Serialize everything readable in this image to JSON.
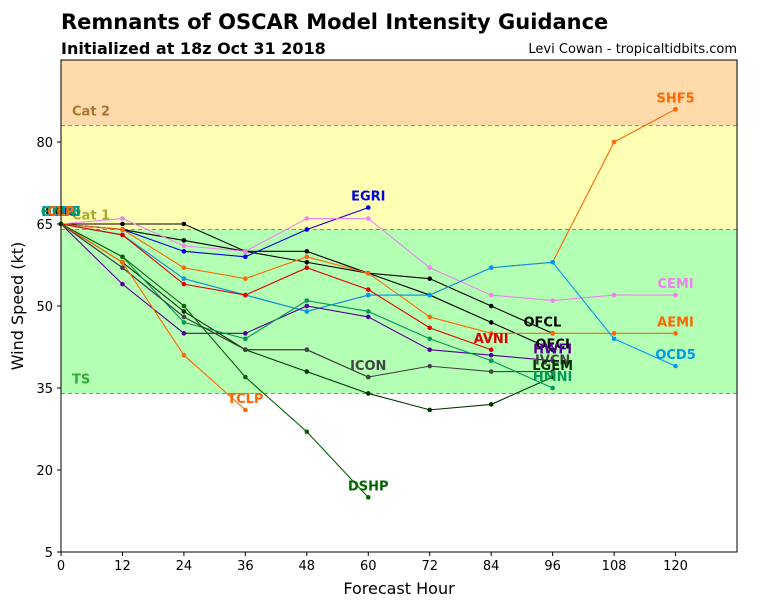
{
  "header": {
    "title": "Remnants of OSCAR Model Intensity Guidance",
    "subtitle": "Initialized at 18z Oct 31 2018",
    "credit": "Levi Cowan - tropicaltidbits.com"
  },
  "chart_data": {
    "type": "line",
    "xlabel": "Forecast Hour",
    "ylabel": "Wind Speed (kt)",
    "xlim": [
      0,
      132
    ],
    "ylim": [
      5,
      95
    ],
    "xticks": [
      0,
      12,
      24,
      36,
      48,
      60,
      72,
      84,
      96,
      108,
      120
    ],
    "yticks": [
      5,
      20,
      35,
      50,
      65,
      80
    ],
    "bands": [
      {
        "name": "TS",
        "from": 34,
        "to": 64,
        "color": "#b3ffb3",
        "label_color": "#33aa33"
      },
      {
        "name": "Cat 1",
        "from": 64,
        "to": 83,
        "color": "#ffffb3",
        "label_color": "#aaaa33"
      },
      {
        "name": "Cat 2",
        "from": 83,
        "to": 96,
        "color": "#ffdaaa",
        "label_color": "#aa7733"
      }
    ],
    "series": [
      {
        "name": "OFCL",
        "color": "#000000",
        "x": [
          0,
          12,
          24,
          36,
          48,
          60,
          72,
          84,
          96
        ],
        "y": [
          65,
          65,
          65,
          60,
          60,
          56,
          52,
          47,
          42
        ],
        "label_at": [
          94,
          47
        ]
      },
      {
        "name": "OFCI",
        "color": "#000000",
        "x": [
          0,
          12,
          24,
          36,
          48,
          60,
          72,
          84,
          96
        ],
        "y": [
          65,
          64,
          62,
          60,
          58,
          56,
          55,
          50,
          45
        ],
        "label_at": [
          96,
          43
        ]
      },
      {
        "name": "EGRI",
        "color": "#0000dd",
        "x": [
          0,
          12,
          24,
          36,
          48,
          60
        ],
        "y": [
          65,
          64,
          60,
          59,
          64,
          68
        ],
        "label_at": [
          60,
          70
        ]
      },
      {
        "name": "SHF5",
        "color": "#ff6600",
        "x": [
          0,
          12,
          24,
          36,
          48,
          60,
          72,
          84,
          96,
          108,
          120
        ],
        "y": [
          65,
          63,
          55,
          52,
          49,
          52,
          52,
          57,
          58,
          80,
          86
        ],
        "label_at": [
          120,
          88
        ]
      },
      {
        "name": "CEMI",
        "color": "#ee82ee",
        "x": [
          0,
          12,
          24,
          36,
          48,
          60,
          72,
          84,
          96,
          108,
          120
        ],
        "y": [
          65,
          66,
          61,
          60,
          66,
          66,
          57,
          52,
          51,
          52,
          52
        ],
        "label_at": [
          120,
          54
        ]
      },
      {
        "name": "AEMI",
        "color": "#ff6600",
        "x": [
          0,
          12,
          24,
          36,
          48,
          60,
          72,
          84,
          96,
          108,
          120
        ],
        "y": [
          65,
          64,
          57,
          55,
          59,
          56,
          48,
          45,
          45,
          45,
          45
        ],
        "label_at": [
          120,
          47
        ]
      },
      {
        "name": "OCD5",
        "color": "#0099ee",
        "x": [
          0,
          12,
          24,
          36,
          48,
          60,
          72,
          84,
          96,
          108,
          120
        ],
        "y": [
          65,
          63,
          55,
          52,
          49,
          52,
          52,
          57,
          58,
          44,
          39
        ],
        "label_at": [
          120,
          41
        ]
      },
      {
        "name": "AVNI",
        "color": "#dd0000",
        "x": [
          0,
          12,
          24,
          36,
          48,
          60,
          72,
          84
        ],
        "y": [
          65,
          63,
          54,
          52,
          57,
          53,
          46,
          42
        ],
        "label_at": [
          84,
          44
        ]
      },
      {
        "name": "HWFI",
        "color": "#550099",
        "x": [
          0,
          12,
          24,
          36,
          48,
          60,
          72,
          84,
          96
        ],
        "y": [
          65,
          54,
          45,
          45,
          50,
          48,
          42,
          41,
          40
        ],
        "label_at": [
          96,
          42
        ]
      },
      {
        "name": "IVCN",
        "color": "#444444",
        "x": [
          0,
          12,
          24,
          36,
          48,
          60,
          72,
          84,
          96
        ],
        "y": [
          65,
          57,
          48,
          42,
          42,
          37,
          39,
          38,
          38
        ],
        "label_at": [
          96,
          40
        ]
      },
      {
        "name": "LGEM",
        "color": "#003300",
        "x": [
          0,
          12,
          24,
          36,
          48,
          60,
          72,
          84,
          96
        ],
        "y": [
          65,
          58,
          49,
          42,
          38,
          34,
          31,
          32,
          37
        ],
        "label_at": [
          96,
          39
        ]
      },
      {
        "name": "HMNI",
        "color": "#009955",
        "x": [
          0,
          12,
          24,
          36,
          48,
          60,
          72,
          84,
          96
        ],
        "y": [
          65,
          59,
          47,
          44,
          51,
          49,
          44,
          40,
          35
        ],
        "label_at": [
          96,
          37
        ]
      },
      {
        "name": "ICON",
        "color": "#444444",
        "x": [
          0,
          12,
          24,
          36,
          48,
          60
        ],
        "y": [
          65,
          57,
          48,
          42,
          42,
          37
        ],
        "label_at": [
          60,
          39
        ]
      },
      {
        "name": "TCLP",
        "color": "#ff6600",
        "x": [
          0,
          12,
          24,
          36
        ],
        "y": [
          65,
          58,
          41,
          31
        ],
        "label_at": [
          36,
          33
        ]
      },
      {
        "name": "DSHP",
        "color": "#006600",
        "x": [
          0,
          12,
          24,
          36,
          48,
          60
        ],
        "y": [
          65,
          59,
          50,
          37,
          27,
          15
        ],
        "label_at": [
          60,
          17
        ]
      }
    ],
    "start_labels": [
      {
        "text": "CMC",
        "color": "#000000"
      },
      {
        "text": "OCD5",
        "color": "#0099ee"
      },
      {
        "text": "HMNI",
        "color": "#009955"
      },
      {
        "text": "CLP",
        "color": "#ff6600"
      }
    ]
  }
}
